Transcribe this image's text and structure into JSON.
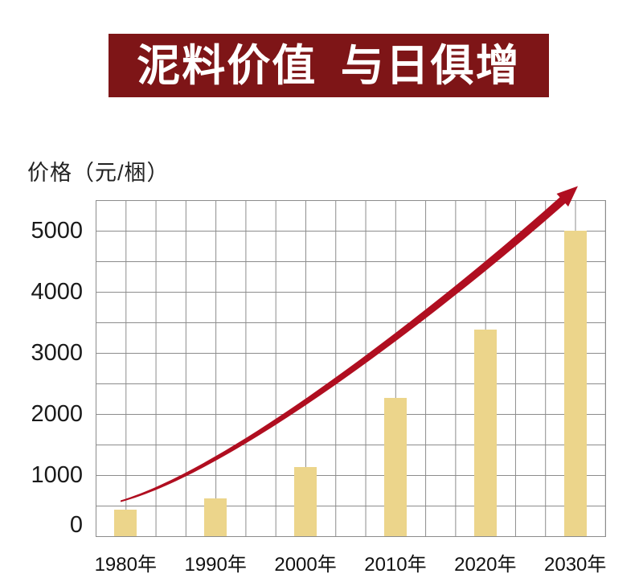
{
  "banner": {
    "title": "泥料价值 与日俱增",
    "bg_color": "#7E1517",
    "text_color": "#FFFFFF"
  },
  "chart_data": {
    "type": "bar",
    "title": "泥料价值 与日俱增",
    "xlabel": "",
    "ylabel": "价格（元/梱）",
    "categories": [
      "1980年",
      "1990年",
      "2000年",
      "2010年",
      "2020年",
      "2030年"
    ],
    "values": [
      430,
      620,
      1130,
      2260,
      3380,
      5000
    ],
    "yticks": [
      0,
      1000,
      2000,
      3000,
      4000,
      5000
    ],
    "ylim": [
      0,
      5500
    ],
    "grid": true,
    "legend": false,
    "annotation": "red tapered swoosh arrow curving upward from 1980 to above the 2030 bar",
    "colors": {
      "bar": "#ECD58B",
      "trend_arrow": "#B00E20",
      "grid": "#8C8C8C",
      "tick_text": "#1A1A1A"
    }
  }
}
